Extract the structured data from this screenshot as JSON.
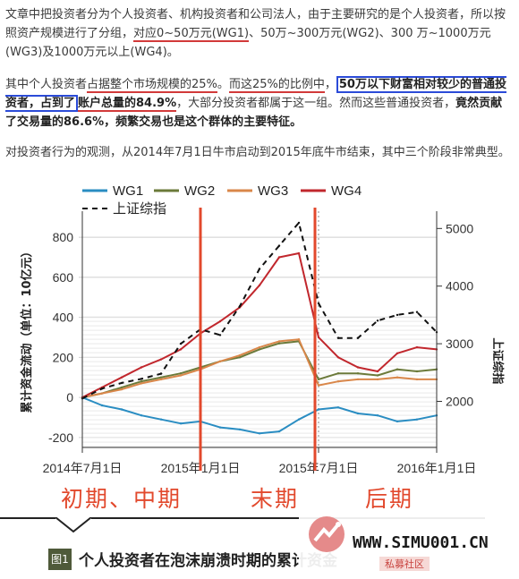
{
  "text": {
    "p1_a": "文章中把投资者分为个人投资者、机构投资者和公司法人，由于主要研究的是个人投资者，所以按照资产规模进行了分组，",
    "p1_b": "对应0~50万元(WG1)",
    "p1_c": "、50万~300万元(WG2)、300 万~1000万元(WG3)及1000万元以上(WG4)。",
    "p2_a": "其中个人投资者",
    "p2_b": "占据整个市场规模的25%",
    "p2_c": "。",
    "p2_d": "而这25%的比例中",
    "p2_e": "，",
    "p2_f": "50万以下财富相对较少的普通投资者，占到了",
    "p2_g": "账户总量的84.9%",
    "p2_h": "，大部分投资者都属于这一组。然而这些普通投资者，",
    "p2_i": "竟然贡献了交易量的86.6%，频繁交易也是这个群体的主要特征。",
    "p3": "对投资者行为的观测，从2014年7月1日牛市启动到2015年底牛市结束，其中三个阶段非常典型。"
  },
  "phases": {
    "early": "初期、中期",
    "late": "末期",
    "after": "后期"
  },
  "caption": {
    "badge": "图1",
    "title": "个人投资者在泡沫崩溃时期的累计资金"
  },
  "watermark": {
    "site": "WWW.SIMU001.CN",
    "sub": "私募社区"
  },
  "colors": {
    "WG1": "#2a8dc2",
    "WG2": "#6b7a3a",
    "WG3": "#d9874a",
    "WG4": "#c1272d",
    "index": "#111111",
    "marker": "#e2492d"
  },
  "chart_data": {
    "type": "line",
    "legend": [
      "WG1",
      "WG2",
      "WG3",
      "WG4",
      "上证综指"
    ],
    "ylabel_left": "累计资金流动（单位：10亿元）",
    "ylabel_right": "上证综指",
    "yticks_left": [
      "800",
      "600",
      "400",
      "200",
      "0",
      "-200"
    ],
    "yticks_right": [
      "5000",
      "4000",
      "3000",
      "2000"
    ],
    "ylim_left": [
      -250,
      930
    ],
    "ylim_right": [
      1200,
      5300
    ],
    "xticks": [
      "2014年7月1日",
      "2015年1月1日",
      "2015年7月1日",
      "2016年1月1日"
    ],
    "x": [
      "2014-07",
      "2014-08",
      "2014-09",
      "2014-10",
      "2014-11",
      "2014-12",
      "2015-01",
      "2015-02",
      "2015-03",
      "2015-04",
      "2015-05",
      "2015-06",
      "2015-07",
      "2015-08",
      "2015-09",
      "2015-10",
      "2015-11",
      "2015-12",
      "2016-01"
    ],
    "series": [
      {
        "name": "WG1",
        "values": [
          0,
          -40,
          -60,
          -90,
          -110,
          -130,
          -120,
          -150,
          -160,
          -180,
          -170,
          -110,
          -60,
          -50,
          -80,
          -90,
          -120,
          -110,
          -90
        ]
      },
      {
        "name": "WG2",
        "values": [
          0,
          20,
          50,
          80,
          100,
          120,
          150,
          180,
          200,
          240,
          270,
          280,
          90,
          120,
          120,
          110,
          140,
          130,
          140
        ]
      },
      {
        "name": "WG3",
        "values": [
          0,
          20,
          40,
          70,
          90,
          110,
          140,
          180,
          210,
          250,
          280,
          290,
          60,
          80,
          90,
          90,
          100,
          90,
          90
        ]
      },
      {
        "name": "WG4",
        "values": [
          0,
          50,
          100,
          150,
          190,
          240,
          320,
          380,
          450,
          560,
          700,
          720,
          300,
          200,
          150,
          130,
          220,
          250,
          240
        ]
      },
      {
        "name": "上证综指",
        "values": [
          2050,
          2220,
          2320,
          2390,
          2480,
          3000,
          3250,
          3150,
          3650,
          4300,
          4700,
          5100,
          3700,
          3100,
          3100,
          3400,
          3500,
          3550,
          3200
        ]
      }
    ],
    "phase_lines": [
      "2015-01",
      "2015-06",
      "2015-07"
    ]
  }
}
